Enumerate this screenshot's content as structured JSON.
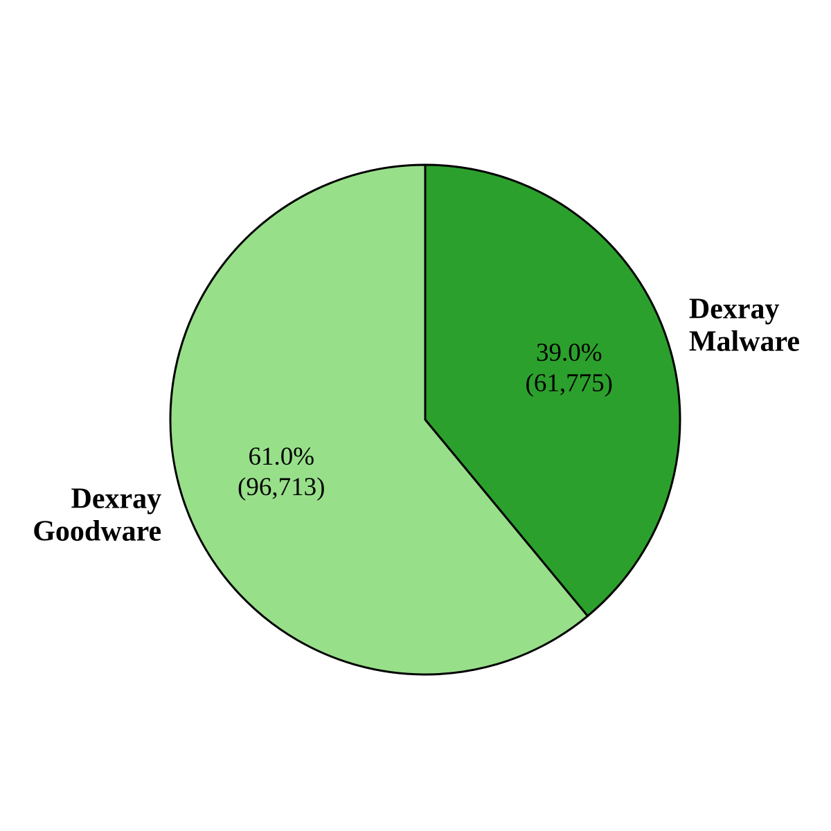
{
  "chart_data": {
    "type": "pie",
    "start_angle_deg": 90,
    "direction": "clockwise",
    "slices": [
      {
        "name_lines": [
          "Dexray",
          "Malware"
        ],
        "percent": 39.0,
        "percent_label": "39.0%",
        "count": 61775,
        "count_label": "(61,775)",
        "color": "#2ca02c"
      },
      {
        "name_lines": [
          "Dexray",
          "Goodware"
        ],
        "percent": 61.0,
        "percent_label": "61.0%",
        "count": 96713,
        "count_label": "(96,713)",
        "color": "#98df8a"
      }
    ],
    "edge_color": "#000000"
  }
}
